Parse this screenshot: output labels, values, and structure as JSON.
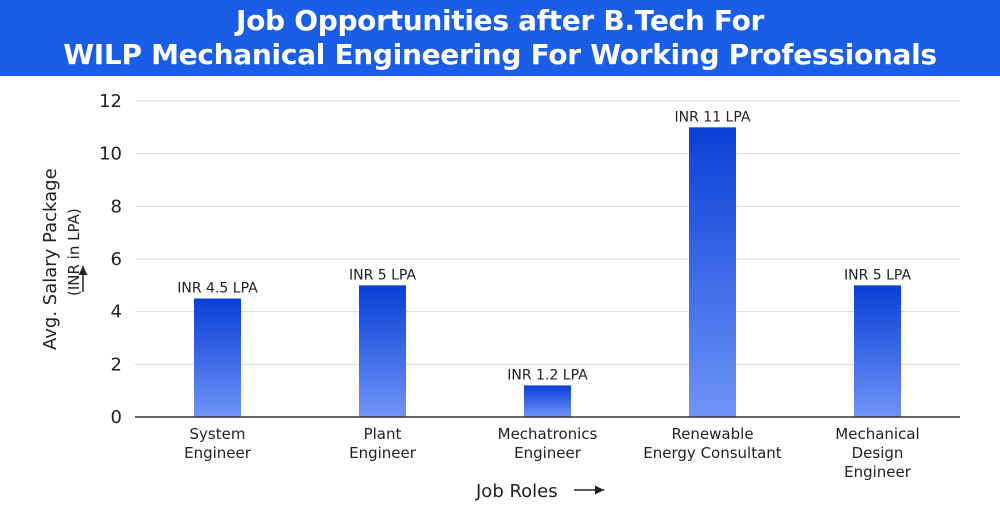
{
  "header": {
    "title_line1": "Job Opportunities after B.Tech For",
    "title_line2": "WILP Mechanical Engineering For Working Professionals"
  },
  "colors": {
    "banner": "#1a5ee8",
    "bar_top": "#0a3fd6",
    "bar_bottom": "#6f93f7",
    "grid": "#d9d9d9"
  },
  "chart_data": {
    "type": "bar",
    "title": "Job Opportunities after B.Tech For WILP Mechanical Engineering For Working Professionals",
    "xlabel": "Job Roles",
    "ylabel": "Avg. Salary Package",
    "ylabel_sub": "(INR in LPA)",
    "categories": [
      [
        "System",
        "Engineer"
      ],
      [
        "Plant",
        "Engineer"
      ],
      [
        "Mechatronics",
        "Engineer"
      ],
      [
        "Renewable",
        "Energy Consultant"
      ],
      [
        "Mechanical",
        "Design",
        "Engineer"
      ]
    ],
    "values": [
      4.5,
      5,
      1.2,
      11,
      5
    ],
    "data_labels": [
      "INR 4.5 LPA",
      "INR 5 LPA",
      "INR 1.2 LPA",
      "INR 11 LPA",
      "INR 5 LPA"
    ],
    "ylim": [
      0,
      12
    ],
    "yticks": [
      0,
      2,
      4,
      6,
      8,
      10,
      12
    ],
    "grid": true,
    "legend": "none"
  }
}
